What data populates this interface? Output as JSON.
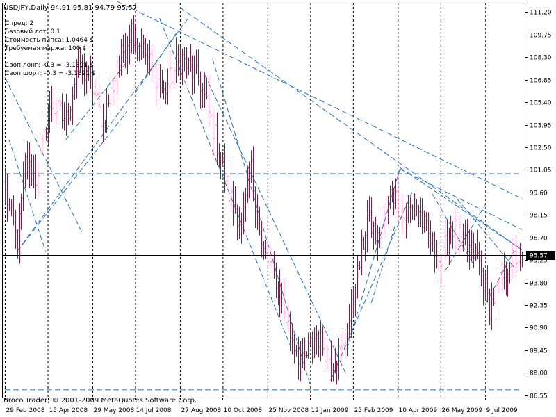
{
  "window": {
    "symbol_title": "USDJPY,Daily  94.91 95.81 94.79 95.57"
  },
  "info_panel": {
    "lines": [
      "Спред: 2",
      "Базовый лот: 0.1",
      "Стоимость пипса: 1.0464 $",
      "Требуемая маржа: 100 $",
      "",
      "Своп лонг: -0.3 = -3.1391 $",
      "Своп шорт: -0.3 = -3.1391 $"
    ]
  },
  "copyright": "Broco Trader, © 2001-2009 MetaQuotes Software Corp.",
  "current_price_label": "95.57",
  "colors": {
    "background": "#ffffff",
    "axis": "#000000",
    "bar": "#8b1a4a",
    "trendline": "#1f6fd6",
    "grid": "#000000"
  },
  "chart_data": {
    "type": "ohlc",
    "symbol": "USDJPY",
    "timeframe": "Daily",
    "last_ohlc": {
      "open": 94.91,
      "high": 95.81,
      "low": 94.79,
      "close": 95.57
    },
    "y_ticks": [
      111.2,
      109.75,
      108.3,
      106.85,
      105.4,
      103.95,
      102.5,
      101.05,
      99.6,
      98.15,
      96.7,
      95.25,
      93.8,
      92.35,
      90.9,
      89.45,
      88.0,
      86.55
    ],
    "ylim": [
      86.4,
      111.8
    ],
    "x_tick_labels": [
      "29 Feb 2008",
      "15 Apr 2008",
      "29 May 2008",
      "14 Jul 2008",
      "27 Aug 2008",
      "10 Oct 2008",
      "25 Nov 2008",
      "12 Jan 2009",
      "25 Feb 2009",
      "10 Apr 2009",
      "26 May 2009",
      "9 Jul 2009"
    ],
    "bar_count": 255,
    "close_anchors": [
      [
        0,
        99.6
      ],
      [
        6,
        96.3
      ],
      [
        10,
        101.5
      ],
      [
        15,
        100.5
      ],
      [
        20,
        103.8
      ],
      [
        23,
        105.2
      ],
      [
        30,
        104.2
      ],
      [
        36,
        108.0
      ],
      [
        42,
        106.8
      ],
      [
        48,
        104.0
      ],
      [
        55,
        107.5
      ],
      [
        62,
        110.2
      ],
      [
        70,
        108.2
      ],
      [
        78,
        106.0
      ],
      [
        86,
        108.3
      ],
      [
        96,
        106.6
      ],
      [
        104,
        102.8
      ],
      [
        110,
        99.5
      ],
      [
        116,
        97.5
      ],
      [
        121,
        101.0
      ],
      [
        126,
        96.0
      ],
      [
        133,
        94.0
      ],
      [
        140,
        90.5
      ],
      [
        146,
        88.5
      ],
      [
        153,
        90.5
      ],
      [
        160,
        88.8
      ],
      [
        166,
        89.5
      ],
      [
        172,
        93.5
      ],
      [
        178,
        98.0
      ],
      [
        183,
        96.5
      ],
      [
        190,
        99.8
      ],
      [
        196,
        98.0
      ],
      [
        202,
        98.8
      ],
      [
        208,
        96.8
      ],
      [
        214,
        95.0
      ],
      [
        219,
        97.5
      ],
      [
        225,
        96.2
      ],
      [
        232,
        95.5
      ],
      [
        238,
        92.2
      ],
      [
        243,
        93.7
      ],
      [
        248,
        95.2
      ],
      [
        254,
        95.57
      ]
    ],
    "trendlines": [
      {
        "x1": 0,
        "y1": 100.8,
        "x2": 254,
        "y2": 100.8
      },
      {
        "x1": 0,
        "y1": 86.9,
        "x2": 254,
        "y2": 86.9
      },
      {
        "x1": 55,
        "y1": 111.9,
        "x2": 254,
        "y2": 99.2
      },
      {
        "x1": 86,
        "y1": 111.5,
        "x2": 254,
        "y2": 95.9
      },
      {
        "x1": 102,
        "y1": 108.2,
        "x2": 150,
        "y2": 87.2
      },
      {
        "x1": 98,
        "y1": 107.2,
        "x2": 168,
        "y2": 87.8
      },
      {
        "x1": 76,
        "y1": 110.8,
        "x2": 140,
        "y2": 89.8
      },
      {
        "x1": 6,
        "y1": 95.8,
        "x2": 90,
        "y2": 110.8
      },
      {
        "x1": 6,
        "y1": 95.8,
        "x2": 60,
        "y2": 104.8
      },
      {
        "x1": 0,
        "y1": 107.0,
        "x2": 38,
        "y2": 97.0
      },
      {
        "x1": 2,
        "y1": 103.0,
        "x2": 20,
        "y2": 95.8
      },
      {
        "x1": 160,
        "y1": 87.5,
        "x2": 200,
        "y2": 99.6
      },
      {
        "x1": 168,
        "y1": 89.5,
        "x2": 194,
        "y2": 101.1
      },
      {
        "x1": 180,
        "y1": 92.5,
        "x2": 192,
        "y2": 97.6
      },
      {
        "x1": 194,
        "y1": 101.1,
        "x2": 254,
        "y2": 97.2
      },
      {
        "x1": 194,
        "y1": 101.2,
        "x2": 254,
        "y2": 95.9
      },
      {
        "x1": 210,
        "y1": 99.5,
        "x2": 230,
        "y2": 95.0
      },
      {
        "x1": 216,
        "y1": 94.5,
        "x2": 236,
        "y2": 98.8
      },
      {
        "x1": 222,
        "y1": 99.2,
        "x2": 250,
        "y2": 94.8
      },
      {
        "x1": 236,
        "y1": 92.4,
        "x2": 250,
        "y2": 95.8
      },
      {
        "x1": 30,
        "y1": 103.0,
        "x2": 60,
        "y2": 108.0
      },
      {
        "x1": 64,
        "y1": 106.0,
        "x2": 85,
        "y2": 110.0
      }
    ]
  }
}
